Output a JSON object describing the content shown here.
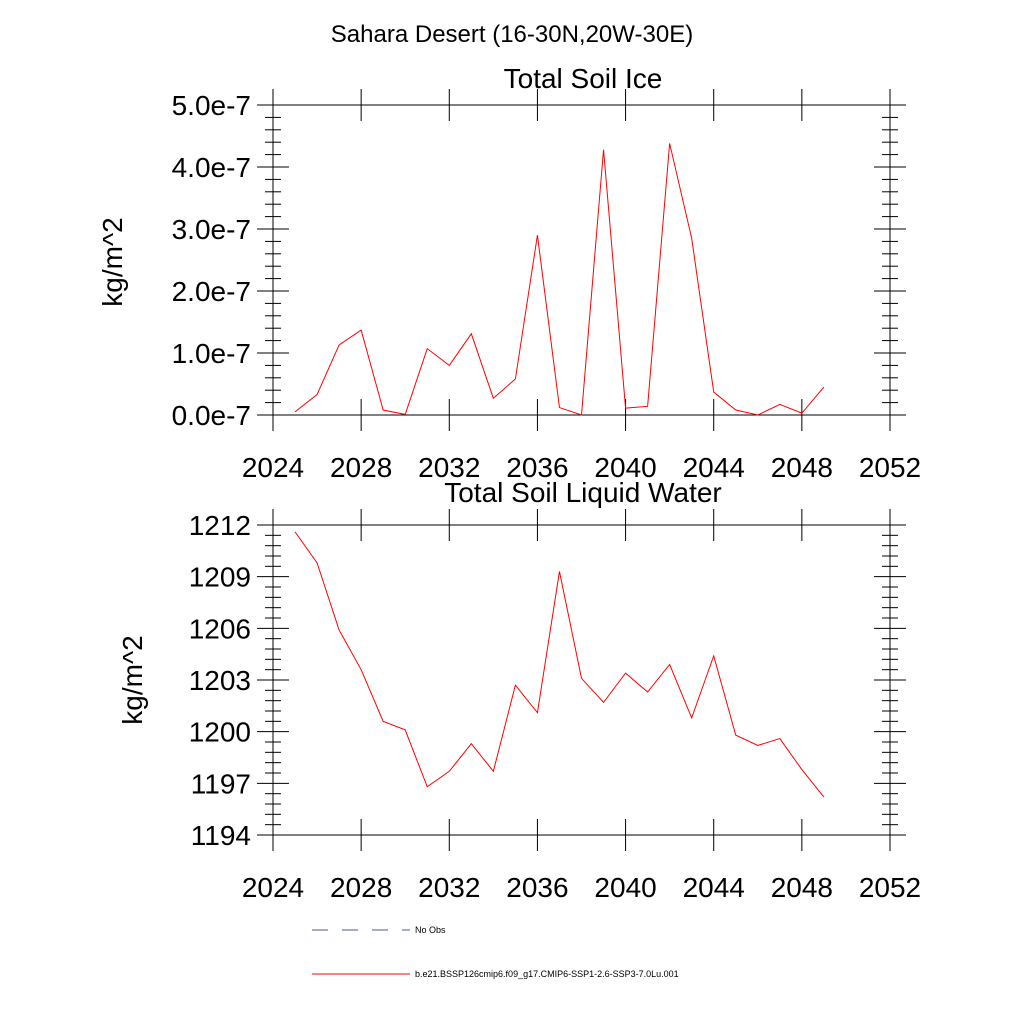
{
  "figure": {
    "suptitle": "Sahara Desert (16-30N,20W-30E)"
  },
  "chart_data": [
    {
      "type": "line",
      "title": "Total Soil Ice",
      "xlabel": "",
      "ylabel": "kg/m^2",
      "xlim": [
        2024,
        2052
      ],
      "ylim": [
        0.0,
        5e-07
      ],
      "xticks": [
        2024,
        2028,
        2032,
        2036,
        2040,
        2044,
        2048,
        2052
      ],
      "xtick_labels": [
        "2024",
        "2028",
        "2032",
        "2036",
        "2040",
        "2044",
        "2048",
        "2052"
      ],
      "yticks": [
        0.0,
        1e-07,
        2e-07,
        3e-07,
        4e-07,
        5e-07
      ],
      "ytick_labels": [
        "0.0e-7",
        "1.0e-7",
        "2.0e-7",
        "3.0e-7",
        "4.0e-7",
        "5.0e-7"
      ],
      "grid": false,
      "x": [
        2025,
        2026,
        2027,
        2028,
        2029,
        2030,
        2031,
        2032,
        2033,
        2034,
        2035,
        2036,
        2037,
        2038,
        2039,
        2040,
        2041,
        2042,
        2043,
        2044,
        2045,
        2046,
        2047,
        2048,
        2049
      ],
      "series": [
        {
          "name": "b.e21.BSSP126cmip6.f09_g17.CMIP6-SSP1-2.6-SSP3-7.0Lu.001",
          "color": "#ff0000",
          "values": [
            5e-09,
            3.3e-08,
            1.13e-07,
            1.37e-07,
            8e-09,
            1e-09,
            1.07e-07,
            8e-08,
            1.31e-07,
            2.7e-08,
            5.8e-08,
            2.9e-07,
            1.2e-08,
            0,
            4.28e-07,
            1.1e-08,
            1.4e-08,
            4.38e-07,
            2.85e-07,
            3.7e-08,
            8e-09,
            0,
            1.7e-08,
            3e-09,
            4.5e-08
          ]
        }
      ]
    },
    {
      "type": "line",
      "title": "Total Soil Liquid Water",
      "xlabel": "",
      "ylabel": "kg/m^2",
      "xlim": [
        2024,
        2052
      ],
      "ylim": [
        1194,
        1212
      ],
      "xticks": [
        2024,
        2028,
        2032,
        2036,
        2040,
        2044,
        2048,
        2052
      ],
      "xtick_labels": [
        "2024",
        "2028",
        "2032",
        "2036",
        "2040",
        "2044",
        "2048",
        "2052"
      ],
      "yticks": [
        1194,
        1197,
        1200,
        1203,
        1206,
        1209,
        1212
      ],
      "ytick_labels": [
        "1194",
        "1197",
        "1200",
        "1203",
        "1206",
        "1209",
        "1212"
      ],
      "grid": false,
      "x": [
        2025,
        2026,
        2027,
        2028,
        2029,
        2030,
        2031,
        2032,
        2033,
        2034,
        2035,
        2036,
        2037,
        2038,
        2039,
        2040,
        2041,
        2042,
        2043,
        2044,
        2045,
        2046,
        2047,
        2048,
        2049
      ],
      "series": [
        {
          "name": "b.e21.BSSP126cmip6.f09_g17.CMIP6-SSP1-2.6-SSP3-7.0Lu.001",
          "color": "#ff0000",
          "values": [
            1211.6,
            1209.8,
            1205.9,
            1203.6,
            1200.6,
            1200.1,
            1196.8,
            1197.7,
            1199.3,
            1197.7,
            1202.7,
            1201.1,
            1209.3,
            1203.1,
            1201.7,
            1203.4,
            1202.3,
            1203.9,
            1200.8,
            1204.4,
            1199.8,
            1199.2,
            1199.6,
            1197.8,
            1196.2
          ]
        }
      ]
    }
  ],
  "legend": {
    "placement": "bottom",
    "entries": [
      {
        "label": "No Obs",
        "color": "#4a5a9a",
        "style": "dashed"
      },
      {
        "label": "b.e21.BSSP126cmip6.f09_g17.CMIP6-SSP1-2.6-SSP3-7.0Lu.001",
        "color": "#ff0000",
        "style": "solid"
      }
    ]
  }
}
